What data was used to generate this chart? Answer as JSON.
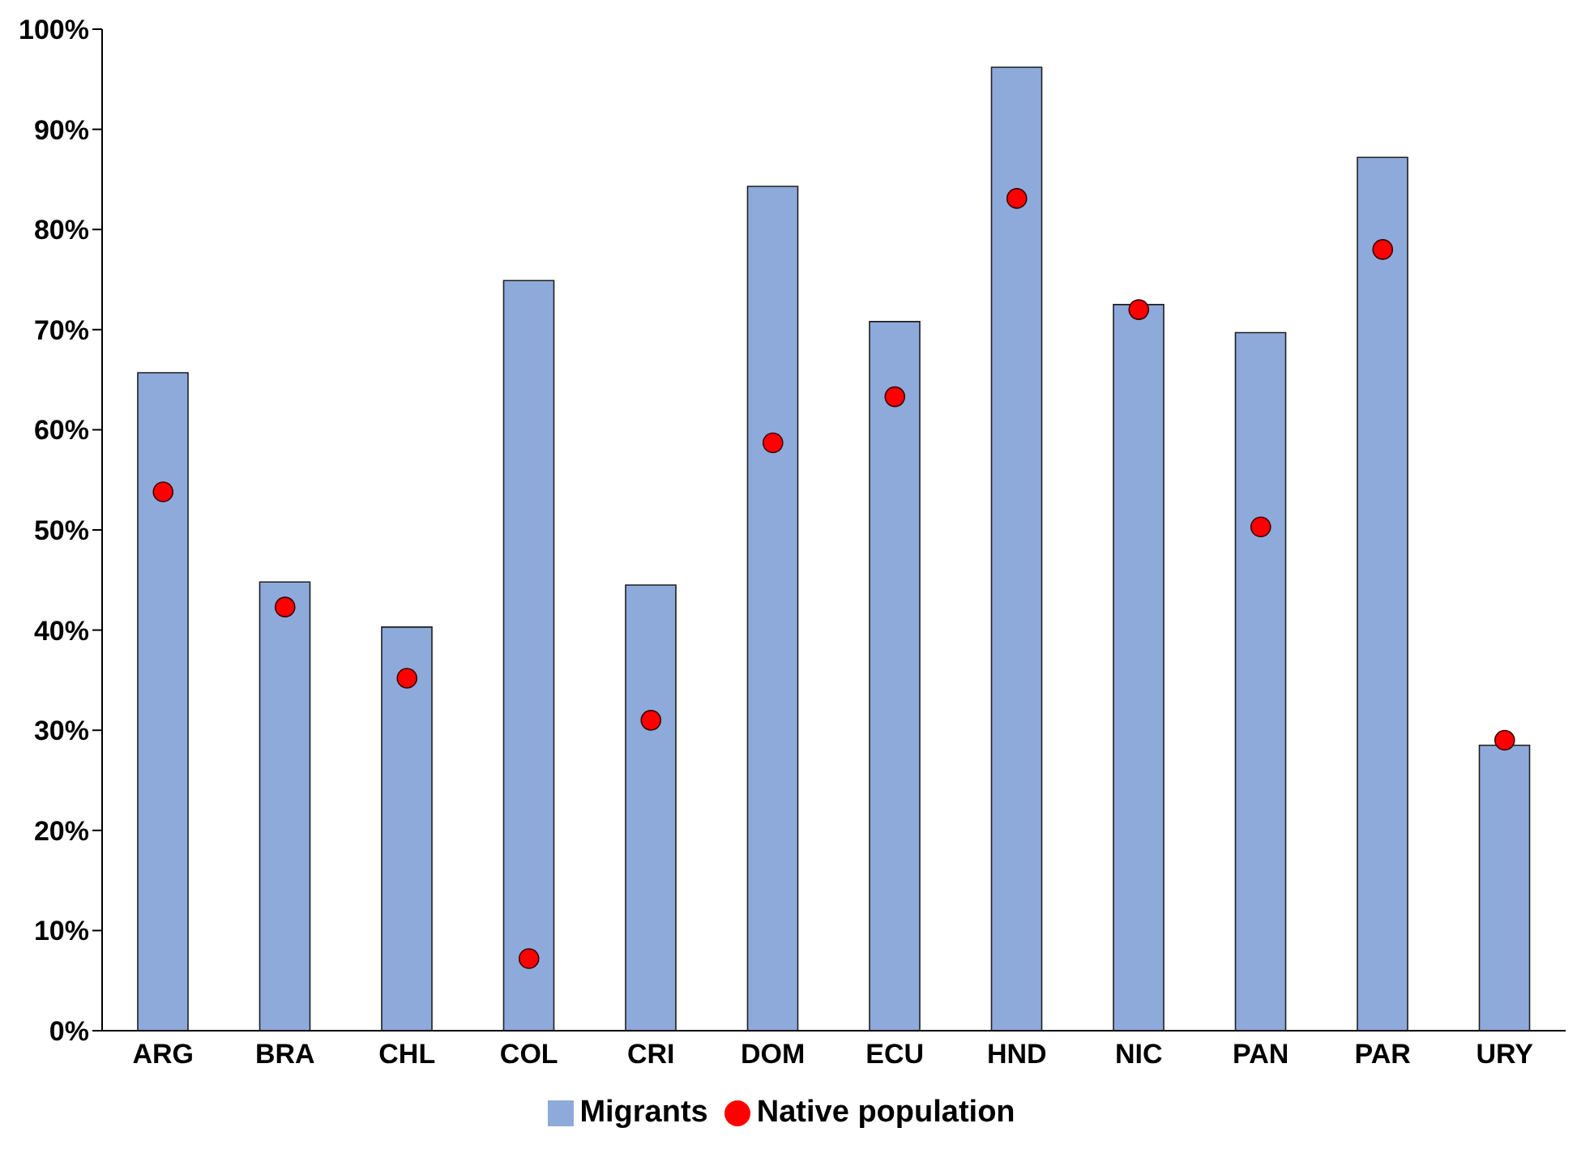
{
  "chart_data": {
    "type": "bar",
    "categories": [
      "ARG",
      "BRA",
      "CHL",
      "COL",
      "CRI",
      "DOM",
      "ECU",
      "HND",
      "NIC",
      "PAN",
      "PAR",
      "URY"
    ],
    "series": [
      {
        "name": "Migrants",
        "color": "#8eaadb",
        "values": [
          65.7,
          44.8,
          40.3,
          74.9,
          44.5,
          84.3,
          70.8,
          96.2,
          72.5,
          69.7,
          87.2,
          28.5
        ]
      },
      {
        "name": "Native population",
        "type": "scatter",
        "color": "#ff0000",
        "marker": "circle",
        "values": [
          53.8,
          42.3,
          35.2,
          7.2,
          31.0,
          58.7,
          63.3,
          83.1,
          72.0,
          50.3,
          78.0,
          29.0
        ]
      }
    ],
    "ylim": [
      0,
      100
    ],
    "yticks": [
      {
        "value": 0,
        "label": "0%"
      },
      {
        "value": 10,
        "label": "10%"
      },
      {
        "value": 20,
        "label": "20%"
      },
      {
        "value": 30,
        "label": "30%"
      },
      {
        "value": 40,
        "label": "40%"
      },
      {
        "value": 50,
        "label": "50%"
      },
      {
        "value": 60,
        "label": "60%"
      },
      {
        "value": 70,
        "label": "70%"
      },
      {
        "value": 80,
        "label": "80%"
      },
      {
        "value": 90,
        "label": "90%"
      },
      {
        "value": 100,
        "label": "100%"
      }
    ],
    "grid": false,
    "legend": "bottom"
  }
}
